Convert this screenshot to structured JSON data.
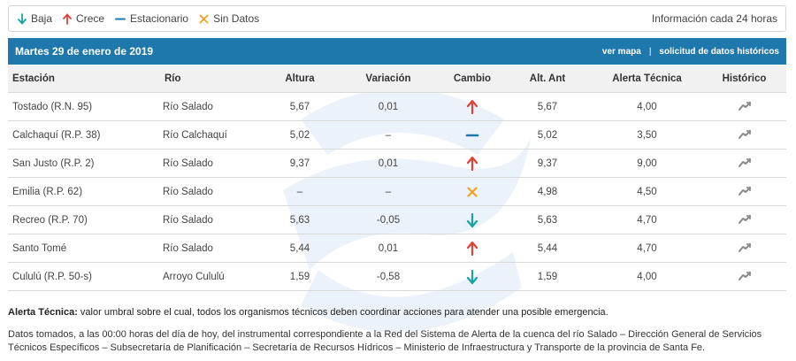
{
  "legend": {
    "items": [
      {
        "symbol": "arrow-down",
        "color": "#17a3a0",
        "label": "Baja"
      },
      {
        "symbol": "arrow-up",
        "color": "#e0413a",
        "label": "Crece"
      },
      {
        "symbol": "dash",
        "color": "#1f78ac",
        "label": "Estacionario"
      },
      {
        "symbol": "cross",
        "color": "#f0a121",
        "label": "Sin Datos"
      }
    ],
    "info": "Información cada 24 horas"
  },
  "header": {
    "date": "Martes 29 de enero de 2019",
    "map_link": "ver mapa",
    "separator": "|",
    "history_link": "solicitud de datos históricos"
  },
  "table": {
    "columns": [
      "Estación",
      "Río",
      "Altura",
      "Variación",
      "Cambio",
      "Alt. Ant",
      "Alerta Técnica",
      "Histórico"
    ],
    "rows": [
      {
        "estacion": "Tostado (R.N. 95)",
        "rio": "Río Salado",
        "altura": "5,67",
        "variacion": "0,01",
        "cambio": "up",
        "alt_ant": "5,67",
        "alerta": "4,00"
      },
      {
        "estacion": "Calchaquí (R.P. 38)",
        "rio": "Río Calchaquí",
        "altura": "5,02",
        "variacion": "–",
        "cambio": "steady",
        "alt_ant": "5,02",
        "alerta": "3,50"
      },
      {
        "estacion": "San Justo (R.P. 2)",
        "rio": "Río Salado",
        "altura": "9,37",
        "variacion": "0,01",
        "cambio": "up",
        "alt_ant": "9,37",
        "alerta": "9,00"
      },
      {
        "estacion": "Emilia (R.P. 62)",
        "rio": "Río Salado",
        "altura": "–",
        "variacion": "–",
        "cambio": "nodata",
        "alt_ant": "4,98",
        "alerta": "4,50"
      },
      {
        "estacion": "Recreo (R.P. 70)",
        "rio": "Río Salado",
        "altura": "5,63",
        "variacion": "-0,05",
        "cambio": "down",
        "alt_ant": "5,63",
        "alerta": "4,70"
      },
      {
        "estacion": "Santo Tomé",
        "rio": "Río Salado",
        "altura": "5,44",
        "variacion": "0,01",
        "cambio": "up",
        "alt_ant": "5,44",
        "alerta": "4,70"
      },
      {
        "estacion": "Cululú (R.P. 50-s)",
        "rio": "Arroyo Cululú",
        "altura": "1,59",
        "variacion": "-0,58",
        "cambio": "down",
        "alt_ant": "1,59",
        "alerta": "4,00"
      }
    ]
  },
  "note": {
    "label": "Alerta Técnica:",
    "text": " valor umbral sobre el cual, todos los organismos técnicos deben coordinar acciones para atender una posible emergencia."
  },
  "footer": "Datos tomados, a las 00:00 horas del día de hoy, del instrumental correspondiente a la Red del Sistema de Alerta de la cuenca del río Salado – Dirección General de Servicios Técnicos Específicos – Subsecretaría de Planificación – Secretaría de Recursos Hídricos – Ministerio de Infraestructura y Transporte de la provincia de Santa Fe.",
  "colors": {
    "header_bar": "#1f78ac",
    "up": "#e0413a",
    "down": "#17a3a0",
    "steady": "#1f78ac",
    "nodata": "#f0a121",
    "history_icon": "#8a8a8a"
  }
}
